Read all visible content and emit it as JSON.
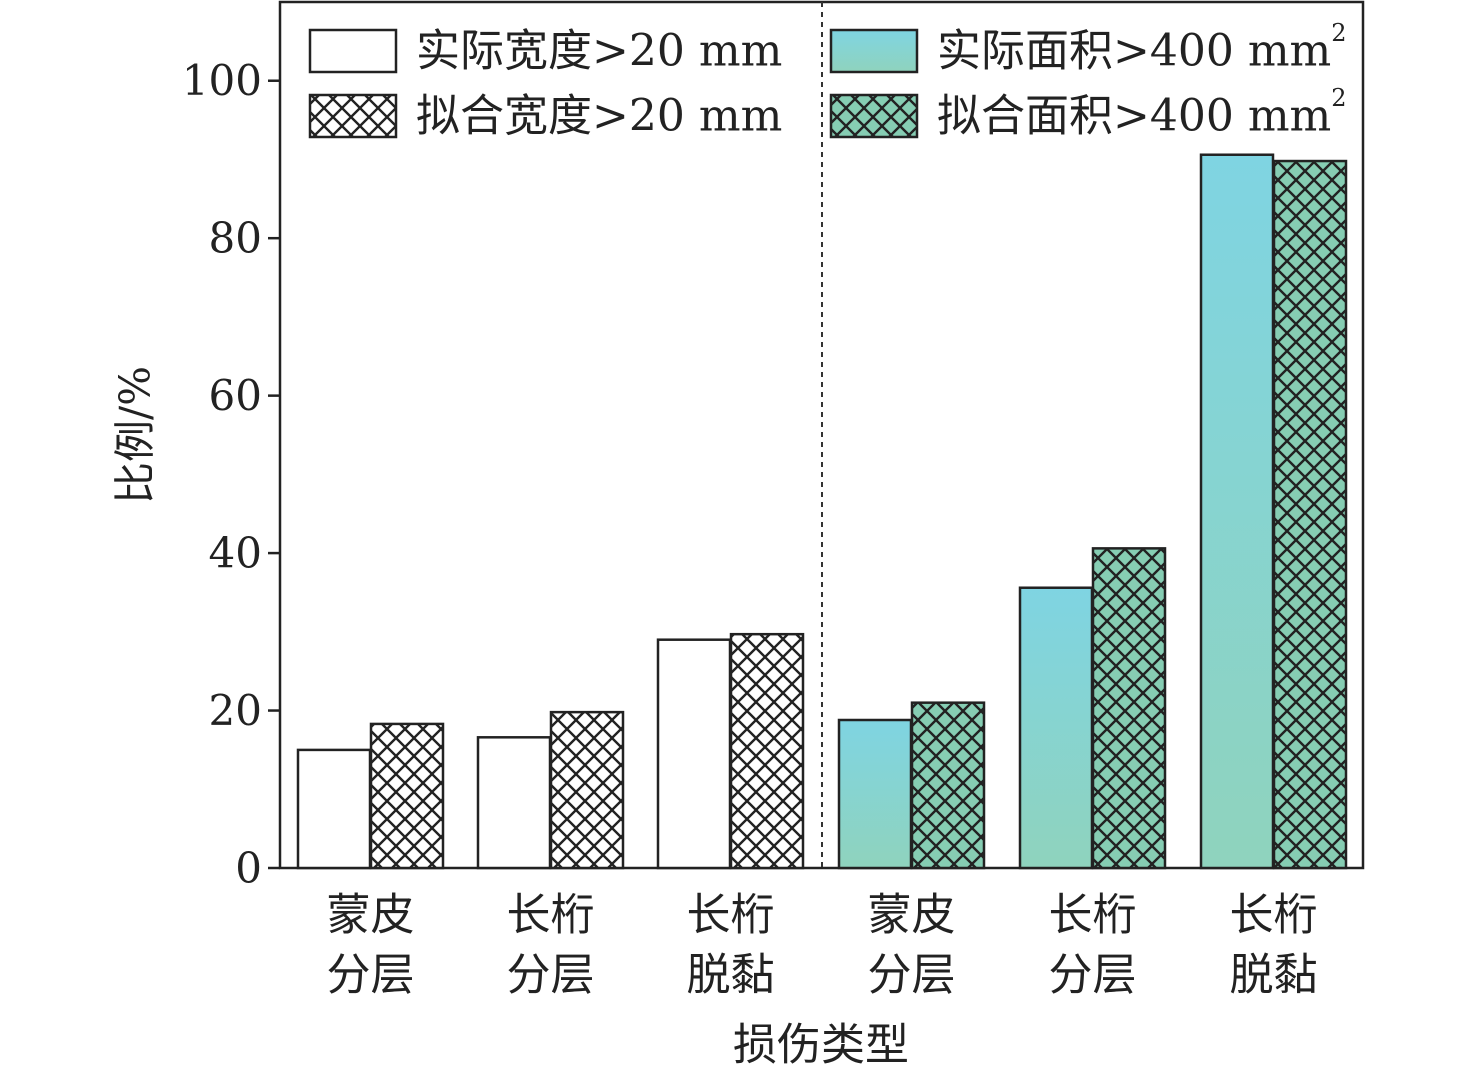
{
  "chart_data": {
    "type": "bar",
    "title": "",
    "xlabel": "损伤类型",
    "ylabel": "比例/%",
    "ylim": [
      0,
      110
    ],
    "yticks": [
      0,
      20,
      40,
      60,
      80,
      100
    ],
    "grid": false,
    "legend_position": "top",
    "groups": [
      {
        "categories": [
          [
            "蒙皮",
            "分层"
          ],
          [
            "长桁",
            "分层"
          ],
          [
            "长桁",
            "脱黏"
          ]
        ],
        "series": [
          {
            "name": "实际宽度>20 mm",
            "values": [
              15,
              16.6,
              29
            ],
            "fill": "#ffffff",
            "hatch": false
          },
          {
            "name": "拟合宽度>20 mm",
            "values": [
              18.3,
              19.8,
              29.7
            ],
            "fill": "#ffffff",
            "hatch": true
          }
        ]
      },
      {
        "categories": [
          [
            "蒙皮",
            "分层"
          ],
          [
            "长桁",
            "分层"
          ],
          [
            "长桁",
            "脱黏"
          ]
        ],
        "series": [
          {
            "name": "实际面积>400 mm",
            "name_sup": "2",
            "values": [
              18.8,
              35.6,
              90.6
            ],
            "fill": "gradient",
            "hatch": false
          },
          {
            "name": "拟合面积>400 mm",
            "name_sup": "2",
            "values": [
              21,
              40.6,
              89.8
            ],
            "fill": "#86cdb3",
            "hatch": true
          }
        ]
      }
    ],
    "colors": {
      "teal_top": "#7fd4e2",
      "teal_bottom": "#8fd3bd",
      "hatch_fill": "#86cdb3",
      "stroke": "#222222",
      "divider": "#333333"
    }
  }
}
